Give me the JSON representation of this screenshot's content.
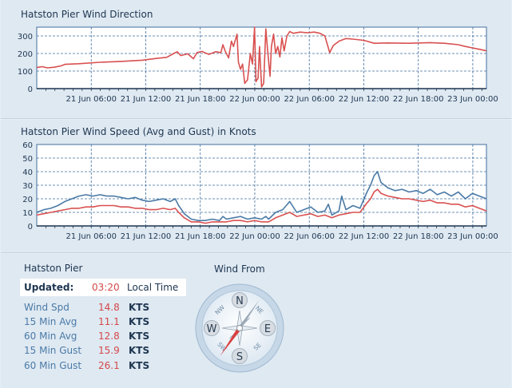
{
  "chart_data": [
    {
      "type": "line",
      "title": "Hatston Pier Wind Direction",
      "x_tick_labels": [
        "21 Jun 06:00",
        "21 Jun 12:00",
        "21 Jun 18:00",
        "22 Jun 00:00",
        "22 Jun 06:00",
        "22 Jun 12:00",
        "22 Jun 18:00",
        "23 Jun 00:00"
      ],
      "xlim_hours": [
        0,
        49.5
      ],
      "ylim": [
        0,
        350
      ],
      "y_ticks": [
        0,
        100,
        200,
        300
      ],
      "grid": true,
      "series": [
        {
          "color": "#d95050",
          "points": [
            [
              0,
              120
            ],
            [
              0.8,
              125
            ],
            [
              1.5,
              118
            ],
            [
              2.5,
              122
            ],
            [
              3.5,
              130
            ],
            [
              4,
              138
            ],
            [
              6,
              142
            ],
            [
              9,
              150
            ],
            [
              12,
              155
            ],
            [
              15,
              162
            ],
            [
              17,
              172
            ],
            [
              18.5,
              178
            ],
            [
              19.5,
              200
            ],
            [
              20,
              210
            ],
            [
              20.5,
              188
            ],
            [
              21.5,
              198
            ],
            [
              22.3,
              170
            ],
            [
              22.8,
              205
            ],
            [
              23.5,
              212
            ],
            [
              24.5,
              195
            ],
            [
              25.5,
              210
            ],
            [
              26.2,
              205
            ],
            [
              26.5,
              250
            ],
            [
              26.8,
              215
            ],
            [
              27.3,
              175
            ],
            [
              27.7,
              270
            ],
            [
              28,
              240
            ],
            [
              28.5,
              310
            ],
            [
              28.7,
              150
            ],
            [
              29,
              110
            ],
            [
              29.3,
              140
            ],
            [
              29.6,
              30
            ],
            [
              30,
              50
            ],
            [
              30.4,
              200
            ],
            [
              30.7,
              140
            ],
            [
              31,
              350
            ],
            [
              31.2,
              40
            ],
            [
              31.5,
              60
            ],
            [
              31.7,
              240
            ],
            [
              32,
              10
            ],
            [
              32.3,
              30
            ],
            [
              32.6,
              340
            ],
            [
              32.9,
              200
            ],
            [
              33.2,
              70
            ],
            [
              33.4,
              240
            ],
            [
              33.7,
              310
            ],
            [
              34,
              200
            ],
            [
              34.3,
              240
            ],
            [
              34.6,
              180
            ],
            [
              34.9,
              290
            ],
            [
              35.2,
              215
            ],
            [
              35.6,
              300
            ],
            [
              36,
              325
            ],
            [
              36.5,
              315
            ],
            [
              37.5,
              322
            ],
            [
              38.5,
              318
            ],
            [
              39.5,
              322
            ],
            [
              40.3,
              315
            ],
            [
              41,
              300
            ],
            [
              41.7,
              205
            ],
            [
              42.2,
              245
            ],
            [
              43,
              270
            ],
            [
              44,
              285
            ],
            [
              45,
              282
            ],
            [
              46.5,
              275
            ],
            [
              47,
              270
            ],
            [
              48,
              258
            ],
            [
              50,
              260
            ],
            [
              53,
              258
            ],
            [
              56,
              262
            ],
            [
              58,
              258
            ],
            [
              60,
              250
            ],
            [
              61,
              240
            ],
            [
              62,
              232
            ],
            [
              63,
              224
            ],
            [
              64,
              215
            ]
          ]
        }
      ]
    },
    {
      "type": "line",
      "title": "Hatston Pier Wind Speed (Avg and Gust) in Knots",
      "x_tick_labels": [
        "21 Jun 06:00",
        "21 Jun 12:00",
        "21 Jun 18:00",
        "22 Jun 00:00",
        "22 Jun 06:00",
        "22 Jun 12:00",
        "22 Jun 18:00",
        "23 Jun 00:00"
      ],
      "xlim_hours": [
        0,
        49.5
      ],
      "ylim": [
        0,
        60
      ],
      "y_ticks": [
        0,
        10,
        20,
        30,
        40,
        50,
        60
      ],
      "grid": true,
      "series": [
        {
          "color": "#4a7aa6",
          "points": [
            [
              0,
              10
            ],
            [
              1,
              12
            ],
            [
              2,
              13
            ],
            [
              3,
              15
            ],
            [
              4,
              18
            ],
            [
              5,
              20
            ],
            [
              6,
              22
            ],
            [
              7,
              23
            ],
            [
              8,
              22
            ],
            [
              9,
              23
            ],
            [
              10,
              22
            ],
            [
              11,
              22
            ],
            [
              12,
              21
            ],
            [
              13,
              20
            ],
            [
              14,
              21
            ],
            [
              15,
              19
            ],
            [
              16,
              18
            ],
            [
              17,
              19
            ],
            [
              18,
              20
            ],
            [
              19,
              18
            ],
            [
              19.7,
              20
            ],
            [
              20.2,
              15
            ],
            [
              21,
              9
            ],
            [
              22,
              5
            ],
            [
              23,
              4
            ],
            [
              24,
              4
            ],
            [
              25,
              5
            ],
            [
              26,
              4
            ],
            [
              26.5,
              7
            ],
            [
              27,
              5
            ],
            [
              28,
              6
            ],
            [
              29,
              7
            ],
            [
              30,
              5
            ],
            [
              31,
              6
            ],
            [
              32,
              5
            ],
            [
              32.6,
              7
            ],
            [
              33,
              5
            ],
            [
              34,
              10
            ],
            [
              35,
              12
            ],
            [
              36,
              18
            ],
            [
              37,
              10
            ],
            [
              38,
              12
            ],
            [
              39,
              14
            ],
            [
              40,
              10
            ],
            [
              41,
              11
            ],
            [
              41.5,
              16
            ],
            [
              42,
              8
            ],
            [
              43,
              11
            ],
            [
              43.4,
              22
            ],
            [
              44,
              12
            ],
            [
              45,
              15
            ],
            [
              46,
              13
            ],
            [
              47,
              25
            ],
            [
              47.5,
              30
            ],
            [
              48,
              37
            ],
            [
              48.5,
              40
            ],
            [
              49,
              32
            ],
            [
              50,
              28
            ],
            [
              51,
              26
            ],
            [
              52,
              27
            ],
            [
              53,
              25
            ],
            [
              54,
              26
            ],
            [
              55,
              24
            ],
            [
              56,
              27
            ],
            [
              57,
              23
            ],
            [
              58,
              25
            ],
            [
              59,
              22
            ],
            [
              60,
              25
            ],
            [
              61,
              20
            ],
            [
              62,
              24
            ],
            [
              63,
              22
            ],
            [
              64,
              20
            ]
          ]
        },
        {
          "color": "#d95050",
          "points": [
            [
              0,
              8
            ],
            [
              1,
              9
            ],
            [
              2,
              10
            ],
            [
              3,
              11
            ],
            [
              4,
              12
            ],
            [
              5,
              13
            ],
            [
              6,
              13
            ],
            [
              7,
              14
            ],
            [
              8,
              14
            ],
            [
              9,
              15
            ],
            [
              10,
              15
            ],
            [
              11,
              15
            ],
            [
              12,
              14
            ],
            [
              13,
              14
            ],
            [
              14,
              13
            ],
            [
              15,
              13
            ],
            [
              16,
              12
            ],
            [
              17,
              12
            ],
            [
              18,
              13
            ],
            [
              19,
              12
            ],
            [
              19.7,
              13
            ],
            [
              20.2,
              10
            ],
            [
              21,
              6
            ],
            [
              22,
              3
            ],
            [
              23,
              3
            ],
            [
              24,
              2
            ],
            [
              25,
              3
            ],
            [
              26,
              3
            ],
            [
              27,
              3
            ],
            [
              28,
              4
            ],
            [
              29,
              4
            ],
            [
              30,
              3
            ],
            [
              31,
              4
            ],
            [
              32,
              3
            ],
            [
              33,
              3
            ],
            [
              34,
              6
            ],
            [
              35,
              8
            ],
            [
              36,
              10
            ],
            [
              37,
              7
            ],
            [
              38,
              8
            ],
            [
              39,
              9
            ],
            [
              40,
              7
            ],
            [
              41,
              8
            ],
            [
              42,
              6
            ],
            [
              43,
              8
            ],
            [
              44,
              9
            ],
            [
              45,
              10
            ],
            [
              46,
              10
            ],
            [
              47,
              17
            ],
            [
              47.5,
              20
            ],
            [
              48,
              25
            ],
            [
              48.5,
              27
            ],
            [
              49,
              24
            ],
            [
              50,
              22
            ],
            [
              51,
              21
            ],
            [
              52,
              20
            ],
            [
              53,
              20
            ],
            [
              54,
              19
            ],
            [
              55,
              18
            ],
            [
              56,
              19
            ],
            [
              57,
              17
            ],
            [
              58,
              17
            ],
            [
              59,
              16
            ],
            [
              60,
              16
            ],
            [
              61,
              14
            ],
            [
              62,
              15
            ],
            [
              63,
              13
            ],
            [
              64,
              11
            ]
          ]
        }
      ]
    }
  ],
  "station": {
    "name": "Hatston Pier"
  },
  "updated": {
    "label": "Updated:",
    "time": "03:20",
    "tz": "Local Time"
  },
  "readings": [
    {
      "label": "Wind Spd",
      "value": "14.8",
      "unit": "KTS"
    },
    {
      "label": "15 Min Avg",
      "value": "11.1",
      "unit": "KTS"
    },
    {
      "label": "60 Min Avg",
      "value": "12.8",
      "unit": "KTS"
    },
    {
      "label": "15 Min Gust",
      "value": "15.9",
      "unit": "KTS"
    },
    {
      "label": "60 Min Gust",
      "value": "26.1",
      "unit": "KTS"
    }
  ],
  "compass": {
    "title": "Wind From",
    "cardinals": [
      "N",
      "E",
      "S",
      "W"
    ],
    "intercardinals": [
      "NE",
      "SE",
      "SW",
      "NW"
    ],
    "needle_deg": 215,
    "colors": {
      "needle": "#d94040",
      "ring": "#b7cce0"
    }
  }
}
